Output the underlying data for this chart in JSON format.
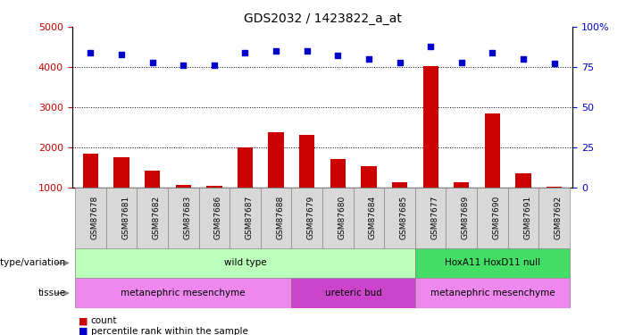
{
  "title": "GDS2032 / 1423822_a_at",
  "samples": [
    "GSM87678",
    "GSM87681",
    "GSM87682",
    "GSM87683",
    "GSM87686",
    "GSM87687",
    "GSM87688",
    "GSM87679",
    "GSM87680",
    "GSM87684",
    "GSM87685",
    "GSM87677",
    "GSM87689",
    "GSM87690",
    "GSM87691",
    "GSM87692"
  ],
  "counts": [
    1850,
    1750,
    1420,
    1060,
    1040,
    2010,
    2380,
    2310,
    1720,
    1540,
    1130,
    4030,
    1140,
    2840,
    1360,
    1020
  ],
  "percentile_ranks": [
    84,
    83,
    78,
    76,
    76,
    84,
    85,
    85,
    82,
    80,
    78,
    88,
    78,
    84,
    80,
    77
  ],
  "ylim_left": [
    1000,
    5000
  ],
  "ylim_right": [
    0,
    100
  ],
  "yticks_left": [
    1000,
    2000,
    3000,
    4000,
    5000
  ],
  "yticks_right": [
    0,
    25,
    50,
    75,
    100
  ],
  "bar_color": "#cc0000",
  "dot_color": "#0000cc",
  "genotype_groups": [
    {
      "label": "wild type",
      "start": 0,
      "end": 11,
      "color": "#bbffbb"
    },
    {
      "label": "HoxA11 HoxD11 null",
      "start": 11,
      "end": 16,
      "color": "#44dd66"
    }
  ],
  "tissue_groups": [
    {
      "label": "metanephric mesenchyme",
      "start": 0,
      "end": 7,
      "color": "#ee88ee"
    },
    {
      "label": "ureteric bud",
      "start": 7,
      "end": 11,
      "color": "#cc44cc"
    },
    {
      "label": "metanephric mesenchyme",
      "start": 11,
      "end": 16,
      "color": "#ee88ee"
    }
  ],
  "legend_count_color": "#cc0000",
  "legend_dot_color": "#0000cc",
  "title_fontsize": 10,
  "axis_label_color_left": "#cc0000",
  "axis_label_color_right": "#0000cc",
  "sample_box_color": "#d8d8d8",
  "sample_box_edgecolor": "#888888"
}
